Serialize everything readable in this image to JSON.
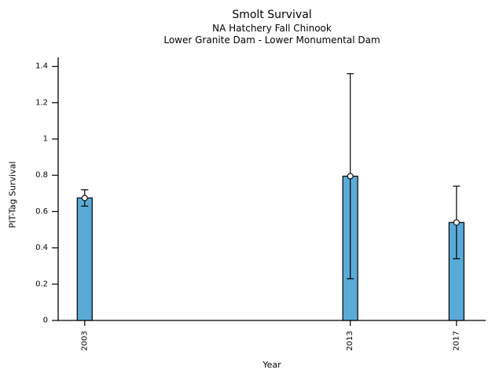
{
  "chart_data": {
    "type": "bar",
    "title": "Smolt Survival",
    "subtitle": "NA Hatchery Fall Chinook",
    "subtitle2": "Lower Granite Dam - Lower Monumental Dam",
    "xlabel": "Year",
    "ylabel": "PIT-Tag Survival",
    "categories": [
      2003,
      2013,
      2017
    ],
    "xtick_labels": [
      "2003",
      "2013",
      "2017"
    ],
    "values": [
      0.675,
      0.795,
      0.54
    ],
    "error_low": [
      0.63,
      0.23,
      0.34
    ],
    "error_high": [
      0.72,
      1.36,
      0.74
    ],
    "xlim": [
      2002.0,
      2018.1
    ],
    "ylim": [
      0,
      1.45
    ],
    "yticks": [
      0,
      0.2,
      0.4,
      0.6,
      0.8,
      1.0,
      1.2,
      1.4
    ],
    "ytick_labels": [
      "0",
      "0.2",
      "0.4",
      "0.6",
      "0.8",
      "1",
      "1.2",
      "1.4"
    ],
    "grid": false,
    "legend": "none",
    "bar_color": "#5AAAD7",
    "bar_edge_color": "#000000",
    "error_color": "#000000",
    "marker": "circle-open",
    "marker_face_color": "#ffffff"
  }
}
